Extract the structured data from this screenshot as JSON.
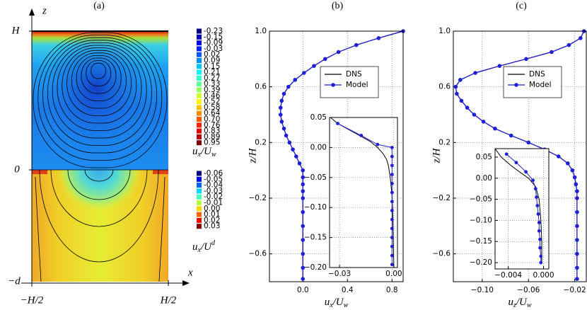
{
  "chart_data": [
    {
      "type": "contour",
      "title": "(a)",
      "xlabel": "x",
      "ylabel": "z",
      "xticks": [
        "−H/2",
        "H/2"
      ],
      "yticks": [
        "H",
        "0",
        "−d"
      ],
      "colormap": "jet",
      "colorbars": [
        {
          "levels": [
            -0.23,
            -0.15,
            -0.09,
            -0.03,
            0.02,
            0.09,
            0.15,
            0.21,
            0.27,
            0.33,
            0.39,
            0.46,
            0.52,
            0.58,
            0.64,
            {
              "value": 0.7,
              "label": "0.70"
            },
            0.76,
            0.83,
            0.89,
            0.95
          ],
          "label": [
            {
              "text": "u"
            },
            {
              "sub": "x"
            },
            {
              "text": "/U"
            },
            {
              "sub": "w"
            }
          ]
        },
        {
          "levels": [
            -0.06,
            -0.05,
            -0.04,
            -0.03,
            -0.02,
            -0.01,
            {
              "value": 0,
              "label": "0.00"
            },
            0.01,
            0.02,
            0.03
          ],
          "label": [
            {
              "text": "u"
            },
            {
              "sub": "x"
            },
            {
              "text": "/U"
            },
            {
              "sup": "d"
            }
          ]
        }
      ]
    },
    {
      "type": "line",
      "title": "(b)",
      "xlabel": [
        {
          "text": "u"
        },
        {
          "sub": "x"
        },
        {
          "text": "/U"
        },
        {
          "sub": "w"
        }
      ],
      "ylabel": "z/H",
      "xlim": [
        -0.3,
        0.9
      ],
      "ylim": [
        -0.8,
        1.0
      ],
      "xticks": [
        {
          "value": 0,
          "label": "0.0"
        },
        0.4,
        0.8
      ],
      "yticks": [
        {
          "value": 1,
          "label": "1.0"
        },
        0.6,
        0.2,
        {
          "value": -0.2,
          "label": "−0.2"
        },
        {
          "value": -0.6,
          "label": "−0.6"
        }
      ],
      "grid": true,
      "legend": "upper right",
      "z": [
        1.0,
        0.95,
        0.9,
        0.85,
        0.8,
        0.75,
        0.7,
        0.65,
        0.6,
        0.55,
        0.5,
        0.45,
        0.4,
        0.35,
        0.3,
        0.25,
        0.2,
        0.15,
        0.1,
        0.05,
        0.0,
        -0.05,
        -0.1,
        -0.15,
        -0.2,
        -0.3,
        -0.4,
        -0.5,
        -0.6,
        -0.7,
        -0.78
      ],
      "series": [
        {
          "name": "DNS",
          "color": "#000000",
          "marker": false,
          "values": [
            0.9,
            0.68,
            0.48,
            0.32,
            0.2,
            0.1,
            0.01,
            -0.07,
            -0.13,
            -0.17,
            -0.19,
            -0.2,
            -0.2,
            -0.19,
            -0.17,
            -0.15,
            -0.12,
            -0.09,
            -0.06,
            -0.03,
            0.0,
            0,
            0,
            0,
            0,
            0,
            0,
            0,
            0,
            0,
            0
          ]
        },
        {
          "name": "Model",
          "color": "#1f1fd6",
          "marker": true,
          "values": [
            0.9,
            0.68,
            0.48,
            0.32,
            0.2,
            0.1,
            0.01,
            -0.07,
            -0.13,
            -0.17,
            -0.19,
            -0.2,
            -0.2,
            -0.19,
            -0.17,
            -0.15,
            -0.12,
            -0.09,
            -0.06,
            -0.03,
            0.0,
            0,
            0,
            0,
            0,
            0,
            0,
            0,
            0,
            0,
            0
          ]
        }
      ],
      "inset": {
        "xlim": [
          -0.0355,
          0.002
        ],
        "ylim": [
          -0.2,
          0.05
        ],
        "xticks": [
          {
            "value": -0.03,
            "label": "−0.03"
          },
          {
            "value": 0,
            "label": "0.00"
          }
        ],
        "yticks": [
          0.05,
          {
            "value": 0,
            "label": "0.00"
          },
          {
            "value": -0.05,
            "label": "−0.05"
          },
          {
            "value": -0.1,
            "label": "−0.10"
          },
          {
            "value": -0.15,
            "label": "−0.15"
          },
          {
            "value": -0.2,
            "label": "−0.20"
          }
        ],
        "grid": true,
        "series": [
          {
            "color": "#000000",
            "marker": false,
            "z": [
              0.05,
              0.04,
              0.03,
              0.02,
              0.01,
              0.0,
              -0.01,
              -0.02,
              -0.03,
              -0.05,
              -0.08,
              -0.12,
              -0.2
            ],
            "values": [
              -0.035,
              -0.031,
              -0.025,
              -0.019,
              -0.013,
              -0.009,
              -0.006,
              -0.004,
              -0.003,
              -0.002,
              -0.001,
              -0.0005,
              0
            ]
          },
          {
            "color": "#1f1fd6",
            "marker": true,
            "z": [
              0.04,
              0.02,
              0.005,
              0.0,
              -0.015,
              -0.03,
              -0.045,
              -0.06,
              -0.075,
              -0.09,
              -0.105,
              -0.12,
              -0.135,
              -0.15,
              -0.165,
              -0.18,
              -0.195
            ],
            "values": [
              -0.031,
              -0.018,
              -0.009,
              -0.001,
              -0.001,
              -0.001,
              -0.001,
              -0.001,
              -0.001,
              -0.001,
              -0.001,
              -0.001,
              -0.001,
              -0.001,
              -0.001,
              -0.001,
              -0.001
            ]
          }
        ]
      }
    },
    {
      "type": "line",
      "title": "(c)",
      "xlabel": [
        {
          "text": "u"
        },
        {
          "sub": "z"
        },
        {
          "text": "/U"
        },
        {
          "sub": "w"
        }
      ],
      "ylabel": "z/H",
      "xlim": [
        -0.125,
        -0.01
      ],
      "ylim": [
        -0.8,
        1.0
      ],
      "xticks": [
        {
          "value": -0.1,
          "label": "−0.10"
        },
        {
          "value": -0.06,
          "label": "−0.06"
        },
        {
          "value": -0.02,
          "label": "−0.02"
        }
      ],
      "yticks": [
        {
          "value": 1,
          "label": "1.0"
        },
        0.6,
        0.2,
        {
          "value": -0.2,
          "label": "−0.2"
        },
        {
          "value": -0.6,
          "label": "−0.6"
        }
      ],
      "grid": true,
      "legend": "upper right",
      "z": [
        1.0,
        0.95,
        0.9,
        0.85,
        0.8,
        0.75,
        0.7,
        0.65,
        0.6,
        0.55,
        0.5,
        0.45,
        0.4,
        0.35,
        0.3,
        0.25,
        0.2,
        0.15,
        0.1,
        0.05,
        0.0,
        -0.05,
        -0.1,
        -0.15,
        -0.2,
        -0.3,
        -0.4,
        -0.5,
        -0.6,
        -0.7,
        -0.78
      ],
      "series": [
        {
          "name": "DNS",
          "color": "#000000",
          "marker": false,
          "values": [
            -0.012,
            -0.015,
            -0.025,
            -0.04,
            -0.062,
            -0.085,
            -0.106,
            -0.119,
            -0.123,
            -0.122,
            -0.118,
            -0.113,
            -0.107,
            -0.099,
            -0.089,
            -0.075,
            -0.06,
            -0.046,
            -0.034,
            -0.026,
            -0.022,
            -0.02,
            -0.019,
            -0.018,
            -0.018,
            -0.018,
            -0.018,
            -0.018,
            -0.018,
            -0.018,
            -0.018
          ]
        },
        {
          "name": "Model",
          "color": "#1f1fd6",
          "marker": true,
          "values": [
            -0.012,
            -0.015,
            -0.025,
            -0.04,
            -0.062,
            -0.085,
            -0.106,
            -0.119,
            -0.123,
            -0.122,
            -0.118,
            -0.113,
            -0.107,
            -0.099,
            -0.089,
            -0.075,
            -0.06,
            -0.046,
            -0.034,
            -0.026,
            -0.022,
            -0.02,
            -0.019,
            -0.018,
            -0.018,
            -0.018,
            -0.018,
            -0.018,
            -0.018,
            -0.018,
            -0.018
          ]
        }
      ],
      "inset": {
        "xlim": [
          -0.0055,
          0.0006
        ],
        "ylim": [
          -0.215,
          0.07
        ],
        "xticks": [
          {
            "value": -0.004,
            "label": "−0.004"
          },
          {
            "value": 0,
            "label": "0.000"
          }
        ],
        "yticks": [
          0.05,
          {
            "value": 0,
            "label": "0.00"
          },
          {
            "value": -0.05,
            "label": "−0.05"
          },
          {
            "value": -0.1,
            "label": "−0.10"
          },
          {
            "value": -0.15,
            "label": "−0.15"
          },
          {
            "value": -0.2,
            "label": "−0.20"
          }
        ],
        "grid": true,
        "series": [
          {
            "color": "#000000",
            "marker": false,
            "z": [
              0.07,
              0.05,
              0.03,
              0.01,
              0.0,
              -0.02,
              -0.05,
              -0.1,
              -0.15,
              -0.2
            ],
            "values": [
              -0.0055,
              -0.0048,
              -0.0037,
              -0.0024,
              -0.0017,
              -0.0009,
              -0.0005,
              -0.0003,
              -0.0002,
              -0.0002
            ]
          },
          {
            "color": "#1f1fd6",
            "marker": true,
            "z": [
              0.057,
              0.037,
              0.015,
              -0.005,
              -0.025,
              -0.045,
              -0.065,
              -0.085,
              -0.105,
              -0.125,
              -0.145,
              -0.165,
              -0.185,
              -0.2
            ],
            "values": [
              -0.0042,
              -0.0031,
              -0.002,
              -0.0012,
              -0.0009,
              -0.0008,
              -0.0007,
              -0.0006,
              -0.0005,
              -0.0005,
              -0.0004,
              -0.0004,
              -0.0003,
              -0.0003
            ]
          }
        ]
      }
    }
  ]
}
